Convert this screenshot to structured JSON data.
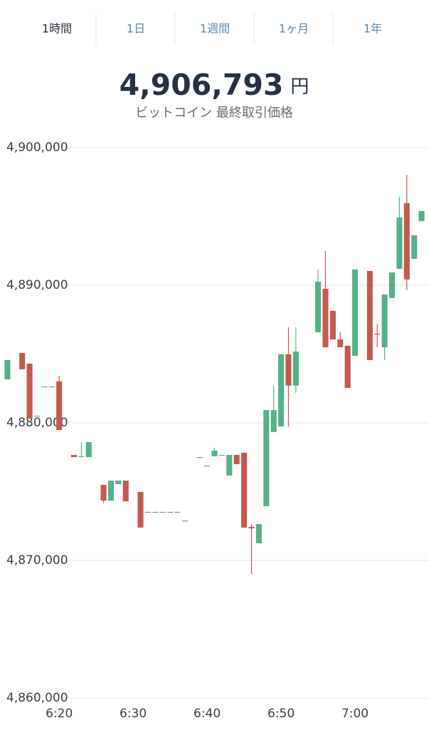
{
  "tabs": [
    "1時間",
    "1日",
    "1週間",
    "1ヶ月",
    "1年"
  ],
  "chart_data": {
    "type": "candlestick",
    "title": "4,906,793",
    "title_unit": "円",
    "subtitle": "ビットコイン 最終取引価格",
    "up_color": "#55b187",
    "down_color": "#c45a4e",
    "grid": true,
    "ylim": [
      4860000,
      4900000
    ],
    "yticks": [
      {
        "value": 4860000,
        "label": "4,860,000"
      },
      {
        "value": 4870000,
        "label": "4,870,000"
      },
      {
        "value": 4880000,
        "label": "4,880,000"
      },
      {
        "value": 4890000,
        "label": "4,890,000"
      },
      {
        "value": 4900000,
        "label": "4,900,000"
      }
    ],
    "xlim": [
      "6:12",
      "7:10"
    ],
    "xticks": [
      "6:20",
      "6:30",
      "6:40",
      "6:50",
      "7:00"
    ],
    "x": [
      "6:13",
      "6:15",
      "6:16",
      "6:17",
      "6:18",
      "6:19",
      "6:20",
      "6:22",
      "6:23",
      "6:24",
      "6:26",
      "6:27",
      "6:28",
      "6:29",
      "6:31",
      "6:32",
      "6:33",
      "6:34",
      "6:35",
      "6:36",
      "6:37",
      "6:39",
      "6:40",
      "6:41",
      "6:42",
      "6:43",
      "6:44",
      "6:45",
      "6:46",
      "6:47",
      "6:48",
      "6:49",
      "6:50",
      "6:51",
      "6:52",
      "6:55",
      "6:56",
      "6:57",
      "6:58",
      "6:59",
      "7:00",
      "7:02",
      "7:03",
      "7:04",
      "7:05",
      "7:06",
      "7:07",
      "7:08",
      "7:09"
    ],
    "open": [
      4883160,
      4885080,
      4884300,
      4880520,
      4882640,
      4882640,
      4883010,
      4877670,
      4877510,
      4877510,
      4875490,
      4874350,
      4875550,
      4875800,
      4874980,
      4873530,
      4873530,
      4873530,
      4873530,
      4873530,
      4872900,
      4877510,
      4876890,
      4877570,
      4877670,
      4876170,
      4877670,
      4877830,
      4872440,
      4871250,
      4873940,
      4879330,
      4879740,
      4884980,
      4882700,
      4886580,
      4889740,
      4888140,
      4886060,
      4885600,
      4884870,
      4891040,
      4886480,
      4885490,
      4889070,
      4891190,
      4895960,
      4891920,
      4894660
    ],
    "high": [
      4884560,
      4885080,
      4884300,
      4880520,
      4882640,
      4882640,
      4883420,
      4877670,
      4878600,
      4878600,
      4875490,
      4875800,
      4875800,
      4875800,
      4874980,
      4873530,
      4873530,
      4873530,
      4873530,
      4873530,
      4872900,
      4877510,
      4876890,
      4878190,
      4877670,
      4877670,
      4877670,
      4877830,
      4872640,
      4872640,
      4880930,
      4882700,
      4884980,
      4886940,
      4886940,
      4891140,
      4892490,
      4888140,
      4886580,
      4885600,
      4891140,
      4891040,
      4887150,
      4889330,
      4890930,
      4896430,
      4898030,
      4893630,
      4895390
    ],
    "low": [
      4883160,
      4883890,
      4880310,
      4880520,
      4882640,
      4882640,
      4879480,
      4877510,
      4877510,
      4877510,
      4874150,
      4874350,
      4875550,
      4874300,
      4872390,
      4873530,
      4873530,
      4873530,
      4873530,
      4873530,
      4872900,
      4877510,
      4876890,
      4877570,
      4877670,
      4876170,
      4877000,
      4872390,
      4869020,
      4871250,
      4873940,
      4879330,
      4879740,
      4879740,
      4882180,
      4886580,
      4885490,
      4886060,
      4885490,
      4882540,
      4884870,
      4884560,
      4885490,
      4884560,
      4889070,
      4891190,
      4889640,
      4891920,
      4894660
    ],
    "close": [
      4884560,
      4883890,
      4880310,
      4880520,
      4882640,
      4882640,
      4879480,
      4877510,
      4877570,
      4878600,
      4874350,
      4875800,
      4875800,
      4874300,
      4872390,
      4873530,
      4873530,
      4873530,
      4873530,
      4873530,
      4872900,
      4877510,
      4876890,
      4877980,
      4877670,
      4877670,
      4877000,
      4872390,
      4872330,
      4872640,
      4880930,
      4880930,
      4884980,
      4882700,
      4885180,
      4890260,
      4885490,
      4886060,
      4885490,
      4882540,
      4891140,
      4884560,
      4886420,
      4889330,
      4890930,
      4894920,
      4890420,
      4893630,
      4895390
    ]
  }
}
